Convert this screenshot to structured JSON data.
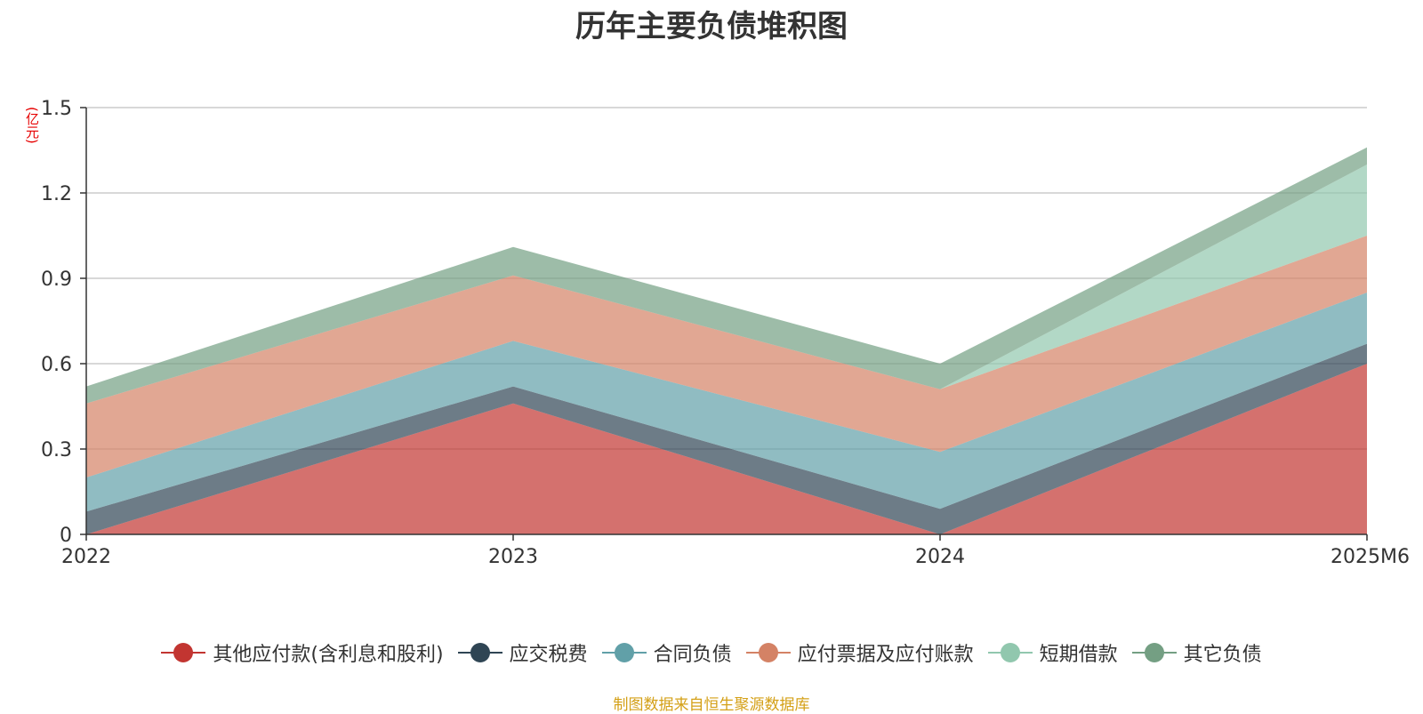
{
  "chart_data": {
    "type": "area",
    "stacked": true,
    "title": "历年主要负债堆积图",
    "unit": "(亿元)",
    "categories": [
      "2022",
      "2023",
      "2024",
      "2025M6"
    ],
    "y_ticks": [
      "0",
      "0.3",
      "0.6",
      "0.9",
      "1.2",
      "1.5"
    ],
    "ylim": [
      0,
      1.5
    ],
    "grid": true,
    "legend_position": "bottom",
    "series": [
      {
        "name": "其他应付款(含利息和股利)",
        "color": "#c23531",
        "values": [
          0.0,
          0.46,
          0.0,
          0.6
        ]
      },
      {
        "name": "应交税费",
        "color": "#2f4554",
        "values": [
          0.08,
          0.06,
          0.09,
          0.07
        ]
      },
      {
        "name": "合同负债",
        "color": "#61a0a8",
        "values": [
          0.12,
          0.16,
          0.2,
          0.18
        ]
      },
      {
        "name": "应付票据及应付账款",
        "color": "#d48265",
        "values": [
          0.26,
          0.23,
          0.22,
          0.2
        ]
      },
      {
        "name": "短期借款",
        "color": "#91c7ae",
        "values": [
          0.0,
          0.0,
          0.0,
          0.25
        ]
      },
      {
        "name": "其它负债",
        "color": "#749f83",
        "values": [
          0.06,
          0.1,
          0.09,
          0.06
        ]
      }
    ]
  },
  "source_note": "制图数据来自恒生聚源数据库"
}
